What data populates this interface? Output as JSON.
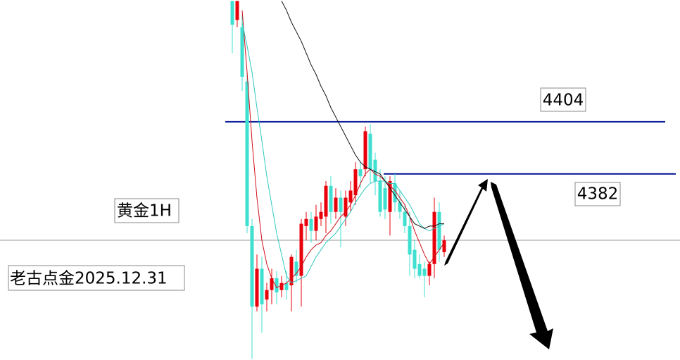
{
  "chart_data": {
    "type": "candlestick",
    "annotations": [
      "黄金1H",
      "老古点金2025.12.31"
    ],
    "ylim": [
      4303.5,
      4455.4
    ],
    "levels": [
      4404,
      4382
    ],
    "up_color": "#e8000b",
    "down_color": "#3fe0d0",
    "open": [
      4455,
      4447,
      4444,
      4421,
      4360,
      4326,
      4342,
      4329,
      4333,
      4338,
      4333,
      4336,
      4335,
      4345,
      4339,
      4360,
      4363,
      4358,
      4363,
      4364,
      4377,
      4366,
      4372,
      4364,
      4370,
      4373,
      4384,
      4384,
      4399,
      4388,
      4379,
      4376,
      4366,
      4378,
      4370,
      4366,
      4360,
      4350,
      4344,
      4342,
      4339,
      4344,
      4366,
      4349
    ],
    "high": [
      4455,
      4455,
      4449,
      4425,
      4363,
      4348,
      4347,
      4336,
      4342,
      4341,
      4339,
      4341,
      4348,
      4350,
      4363,
      4366,
      4366,
      4369,
      4370,
      4379,
      4381,
      4376,
      4375,
      4375,
      4379,
      4387,
      4387,
      4402,
      4403,
      4391,
      4384,
      4381,
      4381,
      4382,
      4375,
      4369,
      4366,
      4354,
      4348,
      4345,
      4345,
      4372,
      4370,
      4356
    ],
    "low": [
      4433,
      4444,
      4417,
      4357,
      4304,
      4324,
      4315,
      4324,
      4327,
      4327,
      4330,
      4329,
      4324,
      4336,
      4326,
      4354,
      4353,
      4354,
      4360,
      4357,
      4361,
      4363,
      4351,
      4360,
      4366,
      4369,
      4376,
      4381,
      4378,
      4373,
      4364,
      4363,
      4356,
      4366,
      4363,
      4357,
      4339,
      4338,
      4338,
      4330,
      4335,
      4338,
      4345,
      4347
    ],
    "close": [
      4445,
      4455,
      4423,
      4360,
      4326,
      4342,
      4327,
      4333,
      4338,
      4332,
      4336,
      4333,
      4347,
      4339,
      4361,
      4363,
      4358,
      4364,
      4366,
      4377,
      4366,
      4372,
      4366,
      4372,
      4375,
      4384,
      4381,
      4400,
      4384,
      4379,
      4366,
      4367,
      4379,
      4370,
      4366,
      4360,
      4348,
      4342,
      4339,
      4339,
      4344,
      4366,
      4350,
      4354
    ],
    "lines": [
      {
        "color": "#d0101a",
        "values": [
          null,
          null,
          4451,
          4425,
          4396,
          4372,
          4354,
          4344,
          4338,
          4334,
          4335,
          4336,
          4338,
          4340,
          4343,
          4347,
          4350,
          4352,
          4353,
          4356,
          4358,
          4361,
          4364,
          4366,
          4369,
          4373,
          4378,
          4382,
          4384,
          4382,
          4381,
          4379,
          4377,
          4375,
          4372,
          4369,
          4364,
          4358,
          4353,
          4348,
          4344,
          4347,
          4350,
          4353
        ]
      },
      {
        "color": "#2fc8c0",
        "values": [
          null,
          null,
          4446,
          4436,
          4425,
          4410,
          4396,
          4381,
          4369,
          4357,
          4348,
          4339,
          4336,
          4337,
          4338,
          4339,
          4343,
          4347,
          4350,
          4353,
          4355,
          4357,
          4360,
          4363,
          4366,
          4370,
          4373,
          4376,
          4378,
          4379,
          4379,
          4379,
          4378,
          4378,
          4375,
          4372,
          4369,
          4365,
          4361,
          4359,
          4358,
          4359,
          4360,
          4361
        ]
      },
      {
        "color": "#111111",
        "values": [
          null,
          null,
          null,
          null,
          null,
          null,
          null,
          null,
          null,
          null,
          4455,
          4451,
          4446,
          4442,
          4438,
          4433,
          4428,
          4424,
          4419,
          4415,
          4410,
          4406,
          4402,
          4398,
          4394,
          4390,
          4387,
          4385,
          4384,
          4383,
          4382,
          4379,
          4376,
          4373,
          4370,
          4367,
          4364,
          4361,
          4360,
          4359,
          4360,
          4360,
          4361,
          4361
        ]
      }
    ]
  }
}
